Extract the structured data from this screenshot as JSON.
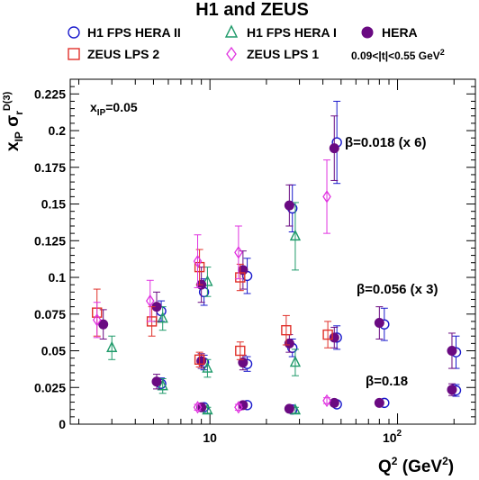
{
  "chart_data": {
    "type": "scatter",
    "title": "H1 and ZEUS",
    "xlabel": "Q2 (GeV2)",
    "ylabel": "xIP σr D(3)",
    "x_scale": "log",
    "xlim": [
      1.8,
      260
    ],
    "ylim": [
      0,
      0.235
    ],
    "grid": false,
    "legend_position": "top",
    "x_tick_labels": [
      "10",
      "10^2"
    ],
    "y_tick_labels": [
      "0",
      "0.025",
      "0.05",
      "0.075",
      "0.1",
      "0.125",
      "0.15",
      "0.175",
      "0.2",
      "0.225"
    ],
    "annotations": {
      "xip": "xIP=0.05",
      "t_range": "0.09<|t|<0.55 GeV2",
      "beta1": "β=0.018 (x 6)",
      "beta2": "β=0.056 (x 3)",
      "beta3": "β=0.18"
    },
    "series": [
      {
        "name": "H1 FPS HERA II",
        "marker": "open-circle",
        "color": "#1a1acc",
        "points": [
          {
            "x": 5.5,
            "y": 0.077,
            "err": 0.007
          },
          {
            "x": 9.3,
            "y": 0.09,
            "err": 0.009
          },
          {
            "x": 15.8,
            "y": 0.101,
            "err": 0.012
          },
          {
            "x": 27.5,
            "y": 0.147,
            "err": 0.016
          },
          {
            "x": 47.5,
            "y": 0.192,
            "err": 0.028
          },
          {
            "x": 5.5,
            "y": 0.0275,
            "err": 0.004
          },
          {
            "x": 9.3,
            "y": 0.042,
            "err": 0.005
          },
          {
            "x": 15.8,
            "y": 0.041,
            "err": 0.005
          },
          {
            "x": 27.5,
            "y": 0.052,
            "err": 0.006
          },
          {
            "x": 47.5,
            "y": 0.059,
            "err": 0.008
          },
          {
            "x": 85,
            "y": 0.068,
            "err": 0.011
          },
          {
            "x": 205,
            "y": 0.049,
            "err": 0.011
          },
          {
            "x": 9.3,
            "y": 0.0115,
            "err": 0.0015
          },
          {
            "x": 15.8,
            "y": 0.013,
            "err": 0.002
          },
          {
            "x": 27.5,
            "y": 0.01,
            "err": 0.0015
          },
          {
            "x": 47.5,
            "y": 0.0135,
            "err": 0.002
          },
          {
            "x": 85,
            "y": 0.0145,
            "err": 0.002
          },
          {
            "x": 205,
            "y": 0.023,
            "err": 0.004
          }
        ]
      },
      {
        "name": "H1 FPS HERA I",
        "marker": "open-triangle",
        "color": "#1f9a6a",
        "points": [
          {
            "x": 3.0,
            "y": 0.052,
            "err": 0.008
          },
          {
            "x": 5.6,
            "y": 0.072,
            "err": 0.008
          },
          {
            "x": 9.7,
            "y": 0.097,
            "err": 0.01
          },
          {
            "x": 28.5,
            "y": 0.128,
            "err": 0.023
          },
          {
            "x": 5.6,
            "y": 0.026,
            "err": 0.005
          },
          {
            "x": 9.7,
            "y": 0.038,
            "err": 0.006
          },
          {
            "x": 28.5,
            "y": 0.042,
            "err": 0.009
          },
          {
            "x": 9.7,
            "y": 0.0095,
            "err": 0.002
          },
          {
            "x": 28.5,
            "y": 0.0095,
            "err": 0.002
          }
        ]
      },
      {
        "name": "HERA",
        "marker": "filled-circle",
        "color": "#6a0a82",
        "points": [
          {
            "x": 2.7,
            "y": 0.068,
            "err": 0.01
          },
          {
            "x": 5.2,
            "y": 0.08,
            "err": 0.01
          },
          {
            "x": 9.0,
            "y": 0.095,
            "err": 0.012
          },
          {
            "x": 15.0,
            "y": 0.105,
            "err": 0.013
          },
          {
            "x": 26.5,
            "y": 0.149,
            "err": 0.014
          },
          {
            "x": 46,
            "y": 0.188,
            "err": 0.022
          },
          {
            "x": 5.2,
            "y": 0.029,
            "err": 0.005
          },
          {
            "x": 9.0,
            "y": 0.043,
            "err": 0.005
          },
          {
            "x": 15.0,
            "y": 0.042,
            "err": 0.005
          },
          {
            "x": 26.5,
            "y": 0.055,
            "err": 0.006
          },
          {
            "x": 46,
            "y": 0.059,
            "err": 0.007
          },
          {
            "x": 80,
            "y": 0.069,
            "err": 0.011
          },
          {
            "x": 195,
            "y": 0.05,
            "err": 0.012
          },
          {
            "x": 9.0,
            "y": 0.0115,
            "err": 0.002
          },
          {
            "x": 15.0,
            "y": 0.013,
            "err": 0.002
          },
          {
            "x": 26.5,
            "y": 0.0105,
            "err": 0.002
          },
          {
            "x": 46,
            "y": 0.0145,
            "err": 0.002
          },
          {
            "x": 80,
            "y": 0.0145,
            "err": 0.002
          },
          {
            "x": 195,
            "y": 0.0235,
            "err": 0.004
          }
        ]
      },
      {
        "name": "ZEUS LPS 2",
        "marker": "open-square",
        "color": "#e0302a",
        "points": [
          {
            "x": 2.5,
            "y": 0.076,
            "err": 0.016
          },
          {
            "x": 4.9,
            "y": 0.07,
            "err": 0.01
          },
          {
            "x": 8.8,
            "y": 0.107,
            "err": 0.012
          },
          {
            "x": 14.5,
            "y": 0.1,
            "err": 0.009
          },
          {
            "x": 8.8,
            "y": 0.044,
            "err": 0.005
          },
          {
            "x": 14.5,
            "y": 0.05,
            "err": 0.006
          },
          {
            "x": 25.5,
            "y": 0.064,
            "err": 0.01
          },
          {
            "x": 42.5,
            "y": 0.061,
            "err": 0.009
          }
        ]
      },
      {
        "name": "ZEUS LPS 1",
        "marker": "open-diamond",
        "color": "#e033e0",
        "points": [
          {
            "x": 2.5,
            "y": 0.071,
            "err": 0.012
          },
          {
            "x": 4.8,
            "y": 0.084,
            "err": 0.014
          },
          {
            "x": 8.6,
            "y": 0.111,
            "err": 0.018
          },
          {
            "x": 14.2,
            "y": 0.117,
            "err": 0.018
          },
          {
            "x": 42,
            "y": 0.155,
            "err": 0.025
          },
          {
            "x": 8.6,
            "y": 0.0115,
            "err": 0.002
          },
          {
            "x": 14.2,
            "y": 0.0115,
            "err": 0.002
          },
          {
            "x": 42,
            "y": 0.016,
            "err": 0.002
          }
        ]
      }
    ]
  }
}
